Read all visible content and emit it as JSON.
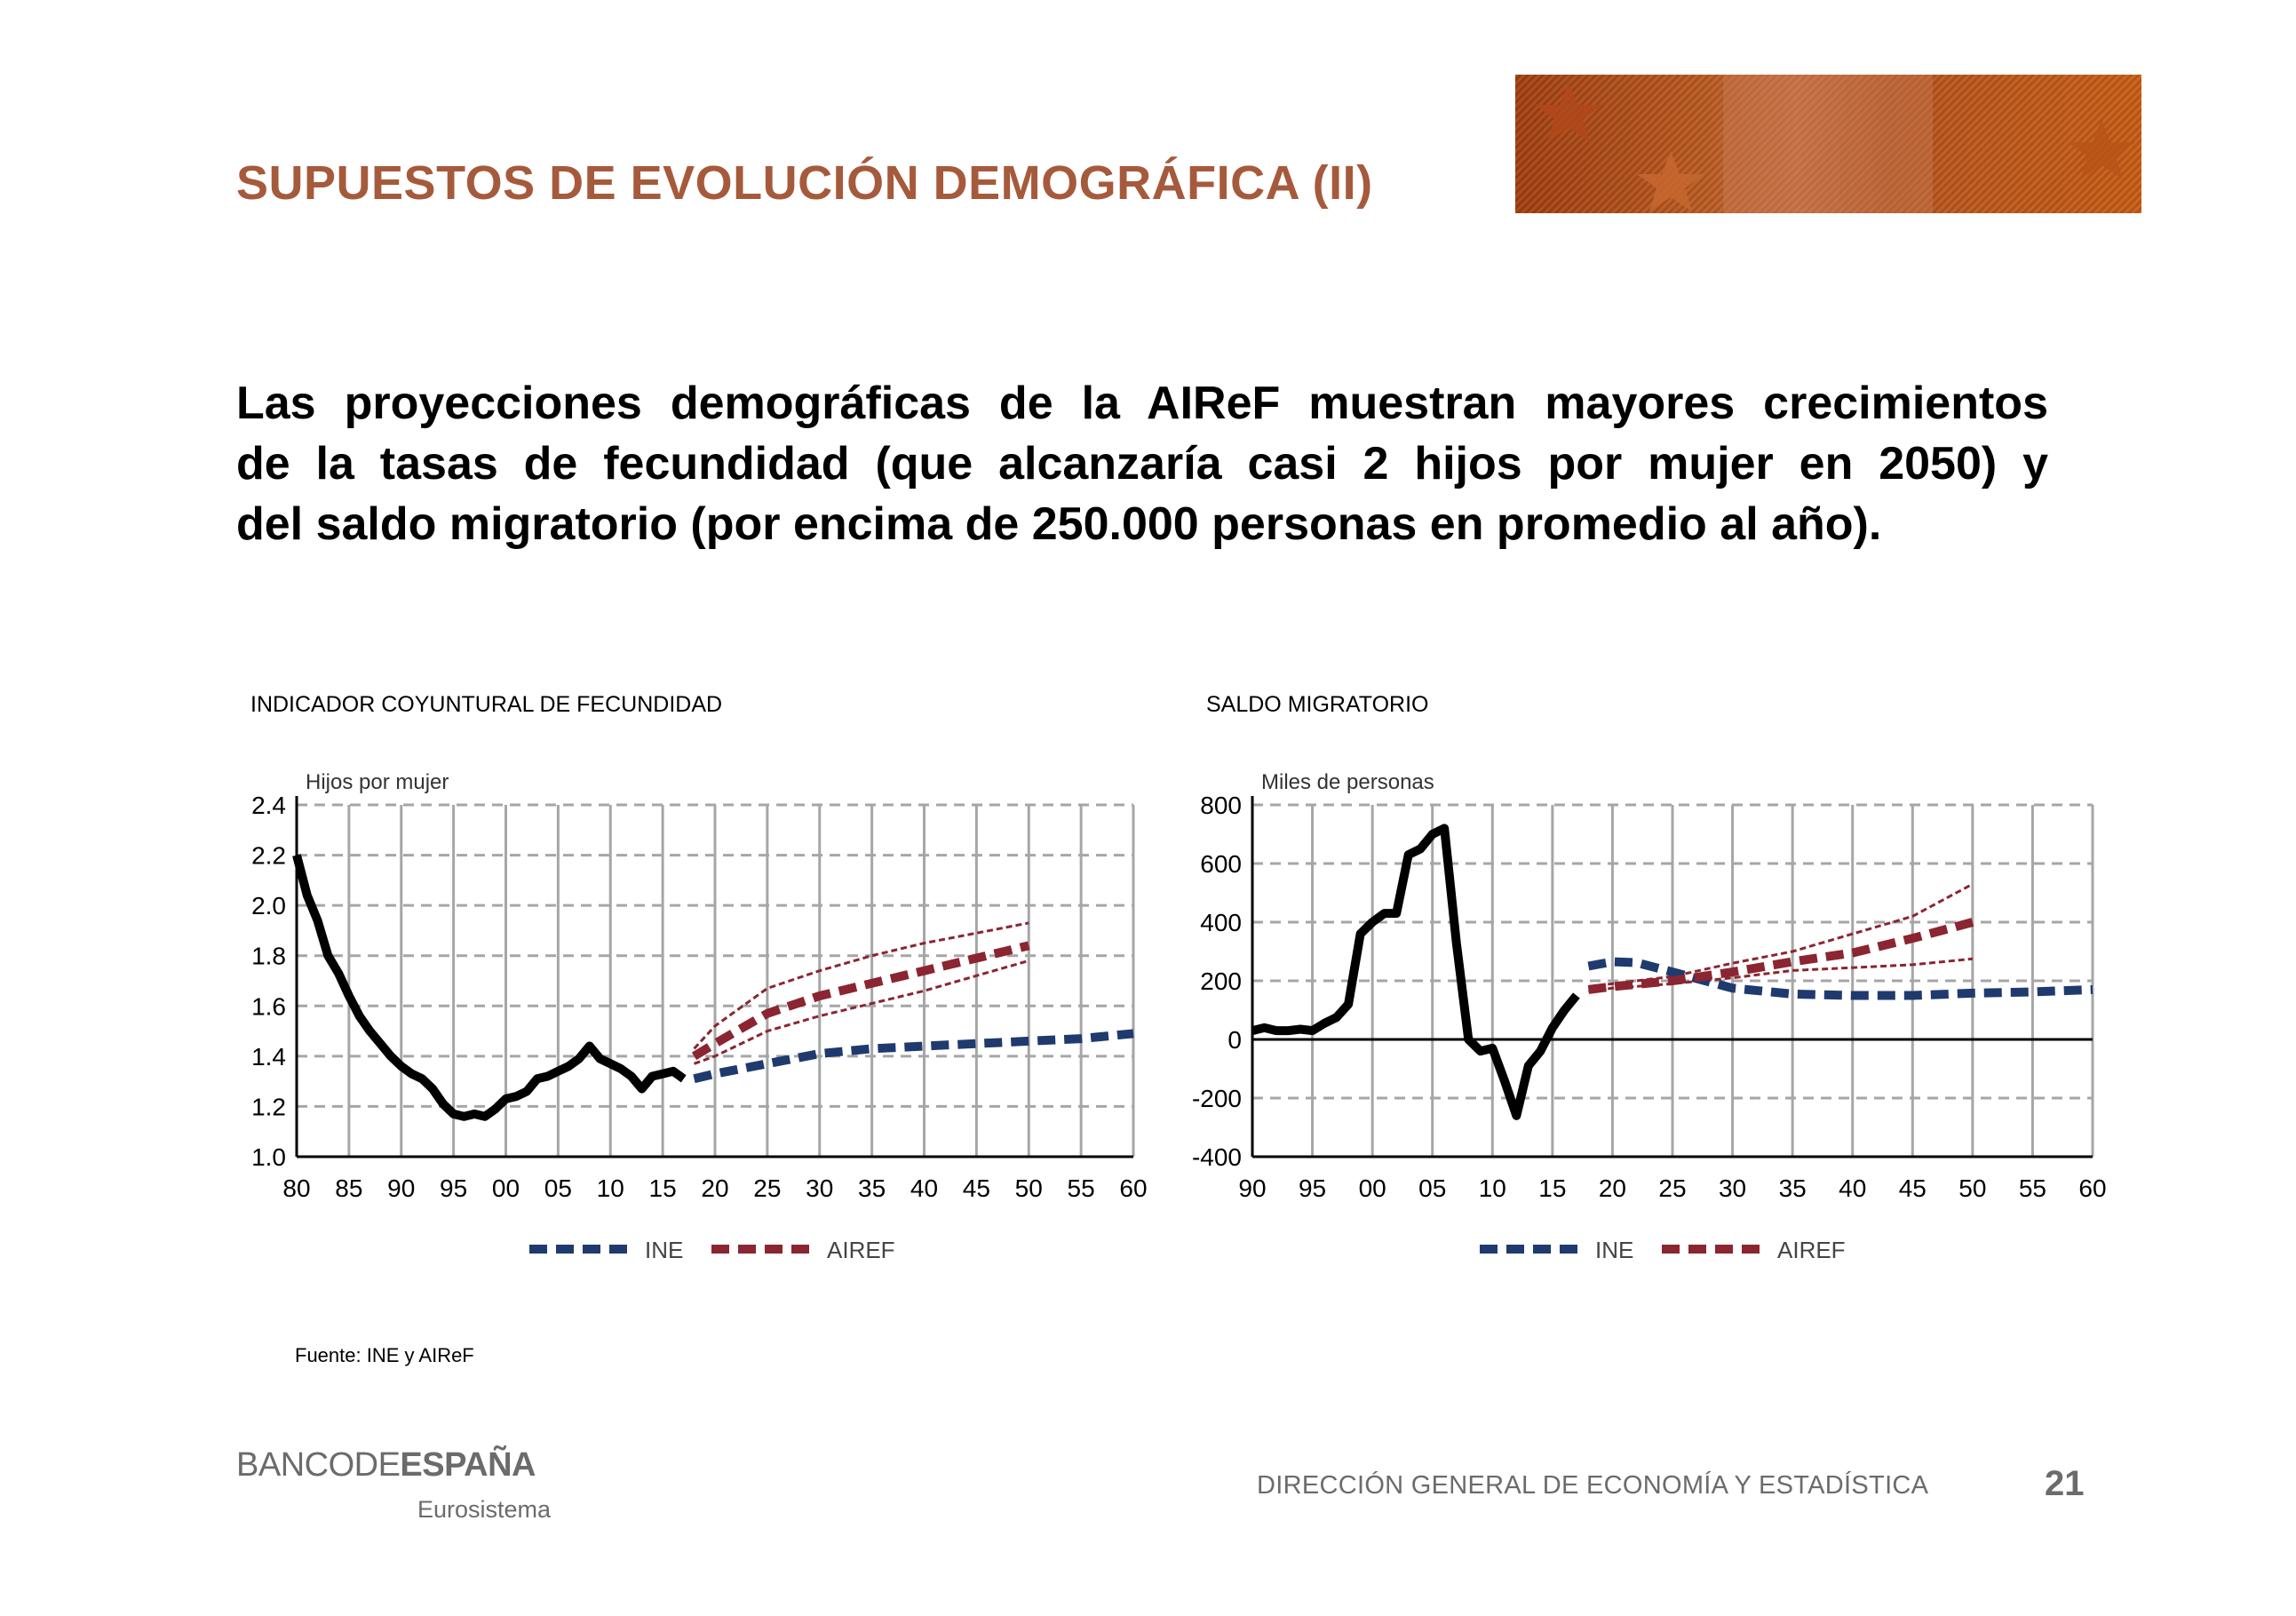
{
  "slide": {
    "title": "SUPUESTOS DE EVOLUCIÓN DEMOGRÁFICA (II)",
    "headline_lines": [
      "Las proyecciones demográficas de la AIReF muestran mayores crecimientos",
      "de la tasas de fecundidad (que alcanzaría casi 2 hijos por mujer en 2050) y",
      "del saldo migratorio (por encima de 250.000 personas en promedio al año)."
    ],
    "source": "Fuente: INE y AIReF",
    "logo_main_regular": "BANCODE",
    "logo_main_bold": "ESPAÑA",
    "logo_sub": "Eurosistema",
    "footer": "DIRECCIÓN GENERAL DE ECONOMÍA Y ESTADÍSTICA",
    "page_number": "21"
  },
  "colors": {
    "title": "#a65a3c",
    "ine": "#1f3a6e",
    "airef": "#8b2531",
    "historical": "#000000",
    "grid": "#a6a6a6"
  },
  "chart_data": [
    {
      "type": "line",
      "title": "INDICADOR COYUNTURAL DE FECUNDIDAD",
      "ylabel": "Hijos por mujer",
      "xlabel": "",
      "x_ticks": [
        "80",
        "85",
        "90",
        "95",
        "00",
        "05",
        "10",
        "15",
        "20",
        "25",
        "30",
        "35",
        "40",
        "45",
        "50",
        "55",
        "60"
      ],
      "x_range": [
        1980,
        2060
      ],
      "ylim": [
        1.0,
        2.4
      ],
      "y_ticks": [
        "1.0",
        "1.2",
        "1.4",
        "1.6",
        "1.8",
        "2.0",
        "2.2",
        "2.4"
      ],
      "grid": true,
      "legend": "bottom-center",
      "legend_labels": [
        "INE",
        "AIREF"
      ],
      "series": [
        {
          "key": "historical",
          "x": [
            1980,
            1981,
            1982,
            1983,
            1984,
            1985,
            1986,
            1987,
            1988,
            1989,
            1990,
            1991,
            1992,
            1993,
            1994,
            1995,
            1996,
            1997,
            1998,
            1999,
            2000,
            2001,
            2002,
            2003,
            2004,
            2005,
            2006,
            2007,
            2008,
            2009,
            2010,
            2011,
            2012,
            2013,
            2014,
            2015,
            2016,
            2017
          ],
          "values": [
            2.2,
            2.04,
            1.94,
            1.8,
            1.73,
            1.64,
            1.56,
            1.5,
            1.45,
            1.4,
            1.36,
            1.33,
            1.31,
            1.27,
            1.21,
            1.17,
            1.16,
            1.17,
            1.16,
            1.19,
            1.23,
            1.24,
            1.26,
            1.31,
            1.32,
            1.34,
            1.36,
            1.39,
            1.44,
            1.39,
            1.37,
            1.35,
            1.32,
            1.27,
            1.32,
            1.33,
            1.34,
            1.31
          ]
        },
        {
          "key": "ine",
          "x": [
            2018,
            2020,
            2025,
            2030,
            2035,
            2040,
            2045,
            2050,
            2055,
            2060
          ],
          "values": [
            1.31,
            1.33,
            1.37,
            1.41,
            1.43,
            1.44,
            1.45,
            1.46,
            1.47,
            1.49
          ]
        },
        {
          "key": "airef",
          "x": [
            2018,
            2020,
            2025,
            2030,
            2035,
            2040,
            2045,
            2050
          ],
          "values": [
            1.4,
            1.45,
            1.57,
            1.64,
            1.69,
            1.74,
            1.79,
            1.84
          ]
        },
        {
          "key": "airef_upper",
          "x": [
            2018,
            2020,
            2025,
            2030,
            2035,
            2040,
            2045,
            2050
          ],
          "values": [
            1.43,
            1.52,
            1.67,
            1.74,
            1.8,
            1.85,
            1.89,
            1.93
          ]
        },
        {
          "key": "airef_lower",
          "x": [
            2018,
            2020,
            2025,
            2030,
            2035,
            2040,
            2045,
            2050
          ],
          "values": [
            1.37,
            1.4,
            1.5,
            1.56,
            1.61,
            1.66,
            1.72,
            1.78
          ]
        }
      ]
    },
    {
      "type": "line",
      "title": "SALDO MIGRATORIO",
      "ylabel": "Miles de personas",
      "xlabel": "",
      "x_ticks": [
        "90",
        "95",
        "00",
        "05",
        "10",
        "15",
        "20",
        "25",
        "30",
        "35",
        "40",
        "45",
        "50",
        "55",
        "60"
      ],
      "x_range": [
        1990,
        2060
      ],
      "ylim": [
        -400,
        800
      ],
      "y_ticks": [
        "-400",
        "-200",
        "0",
        "200",
        "400",
        "600",
        "800"
      ],
      "grid": true,
      "legend": "bottom-center",
      "legend_labels": [
        "INE",
        "AIREF"
      ],
      "series": [
        {
          "key": "historical",
          "x": [
            1990,
            1991,
            1992,
            1993,
            1994,
            1995,
            1996,
            1997,
            1998,
            1999,
            2000,
            2001,
            2002,
            2003,
            2004,
            2005,
            2006,
            2007,
            2008,
            2009,
            2010,
            2011,
            2012,
            2013,
            2014,
            2015,
            2016,
            2017
          ],
          "values": [
            30,
            40,
            30,
            30,
            35,
            30,
            55,
            75,
            120,
            360,
            400,
            430,
            430,
            630,
            650,
            700,
            720,
            330,
            0,
            -40,
            -30,
            -140,
            -260,
            -90,
            -40,
            40,
            100,
            150
          ]
        },
        {
          "key": "ine",
          "x": [
            2018,
            2020,
            2022,
            2025,
            2030,
            2035,
            2040,
            2045,
            2050,
            2055,
            2060
          ],
          "values": [
            250,
            265,
            262,
            230,
            175,
            155,
            150,
            150,
            158,
            162,
            170
          ]
        },
        {
          "key": "airef",
          "x": [
            2018,
            2020,
            2025,
            2030,
            2035,
            2040,
            2045,
            2050
          ],
          "values": [
            170,
            180,
            200,
            230,
            265,
            295,
            345,
            400
          ]
        },
        {
          "key": "airef_upper",
          "x": [
            2018,
            2020,
            2025,
            2030,
            2035,
            2040,
            2045,
            2050
          ],
          "values": [
            180,
            190,
            215,
            260,
            300,
            360,
            420,
            530
          ]
        },
        {
          "key": "airef_lower",
          "x": [
            2018,
            2020,
            2025,
            2030,
            2035,
            2040,
            2045,
            2050
          ],
          "values": [
            165,
            175,
            190,
            210,
            235,
            245,
            255,
            275
          ]
        }
      ]
    }
  ]
}
